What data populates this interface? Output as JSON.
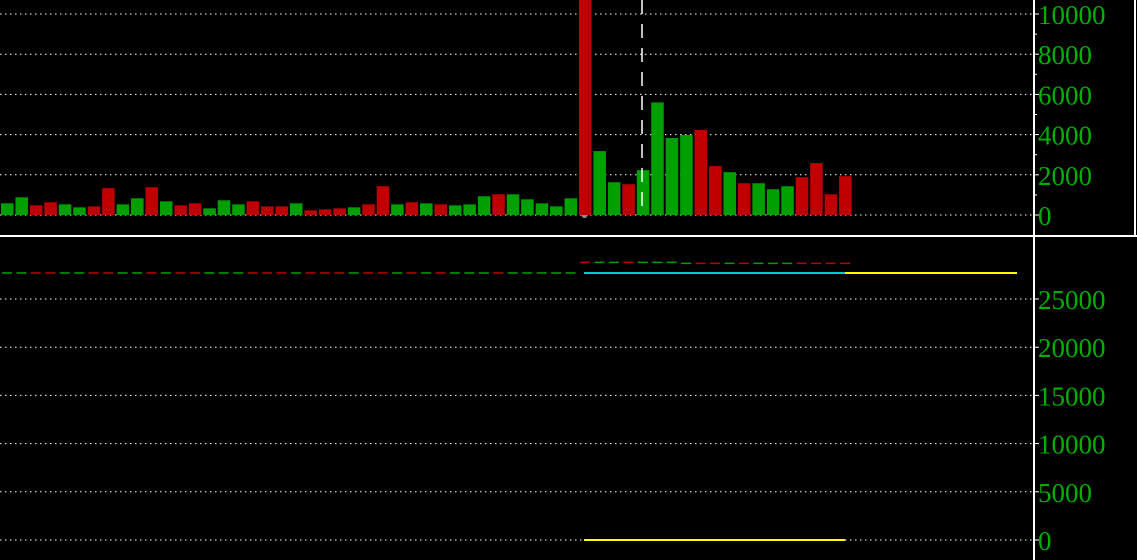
{
  "chart_data": [
    {
      "type": "bar",
      "title": "",
      "ylim": [
        0,
        10500
      ],
      "yticks": [
        0,
        2000,
        4000,
        6000,
        8000,
        10000
      ],
      "grid": true,
      "colors": {
        "up": "#00a000",
        "down": "#c00000",
        "axis": "#ffffff",
        "tick_text": "#00b000"
      },
      "series": [
        {
          "values": [
            580,
            880,
            480,
            630,
            530,
            380,
            430,
            1330,
            530,
            830,
            1380,
            680,
            480,
            580,
            330,
            730,
            530,
            680,
            430,
            430,
            580,
            230,
            280,
            330,
            380,
            530,
            1430,
            530,
            630,
            580,
            530,
            480,
            530,
            930,
            1030,
            1030,
            780,
            580,
            430,
            830,
            11000,
            3180,
            1630,
            1530,
            2230,
            5600,
            3830,
            3980,
            4230,
            2430,
            2130,
            1580,
            1580,
            1280,
            1430,
            1880,
            2580,
            1030,
            1930
          ],
          "direction": [
            "up",
            "up",
            "down",
            "down",
            "up",
            "up",
            "down",
            "down",
            "up",
            "up",
            "down",
            "up",
            "down",
            "down",
            "up",
            "up",
            "up",
            "down",
            "down",
            "down",
            "up",
            "down",
            "down",
            "down",
            "up",
            "down",
            "down",
            "up",
            "down",
            "up",
            "down",
            "up",
            "up",
            "up",
            "down",
            "up",
            "up",
            "up",
            "up",
            "up",
            "down",
            "up",
            "up",
            "down",
            "up",
            "up",
            "up",
            "up",
            "down",
            "down",
            "up",
            "down",
            "up",
            "up",
            "up",
            "down",
            "down",
            "down",
            "down"
          ]
        }
      ],
      "marker_bar_index": 45
    },
    {
      "type": "line",
      "title": "",
      "ylim": [
        0,
        30000
      ],
      "yticks": [
        0,
        5000,
        10000,
        15000,
        20000,
        25000
      ],
      "grid": true,
      "series": [
        {
          "color": "#00cccc",
          "from_bar": 40,
          "to_bar": 58,
          "value": 27700
        },
        {
          "color": "#ffff00",
          "from_bar": 58,
          "to_bar": 70,
          "value": 27700
        },
        {
          "color": "#ffff00",
          "from_bar": 40,
          "to_bar": 58,
          "value": 0
        }
      ],
      "dashed_level": 27700,
      "dashed_level_upper": 28800
    }
  ]
}
